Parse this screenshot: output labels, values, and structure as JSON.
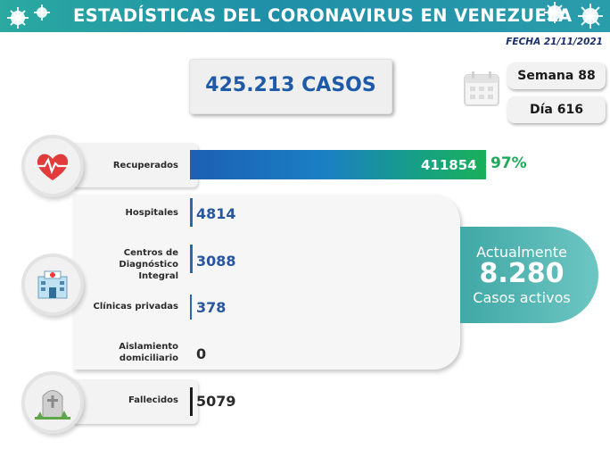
{
  "header": {
    "title": "ESTADÍSTICAS DEL CORONAVIRUS EN VENEZUELA"
  },
  "date": "FECHA 21/11/2021",
  "cases": {
    "total_label": "425.213 CASOS"
  },
  "week": "Semana 88",
  "day": "Día 616",
  "recovered": {
    "label": "Recuperados",
    "value": "411854",
    "percent": "97%"
  },
  "treatment": [
    {
      "label": "Hospitales",
      "value": "4814"
    },
    {
      "label": "Centros de Diagnóstico Integral",
      "value": "3088"
    },
    {
      "label": "Clínicas privadas",
      "value": "378"
    },
    {
      "label": "Aislamiento domiciliario",
      "value": "0"
    }
  ],
  "deaths": {
    "label": "Fallecidos",
    "value": "5079"
  },
  "active": {
    "line1": "Actualmente",
    "value": "8.280",
    "line2": "Casos activos"
  },
  "colors": {
    "banner": "#2aa9a0",
    "cases_text": "#1e5aa8",
    "recovered_bar_start": "#1d5fb3",
    "recovered_bar_end": "#19b05a",
    "percent_green": "#1faa59",
    "active_badge": "#40a8a6",
    "tick_blue": "#2f64b4"
  },
  "icons": [
    "virus-icon",
    "calendar-icon",
    "heart-pulse-icon",
    "hospital-icon",
    "tombstone-icon"
  ]
}
